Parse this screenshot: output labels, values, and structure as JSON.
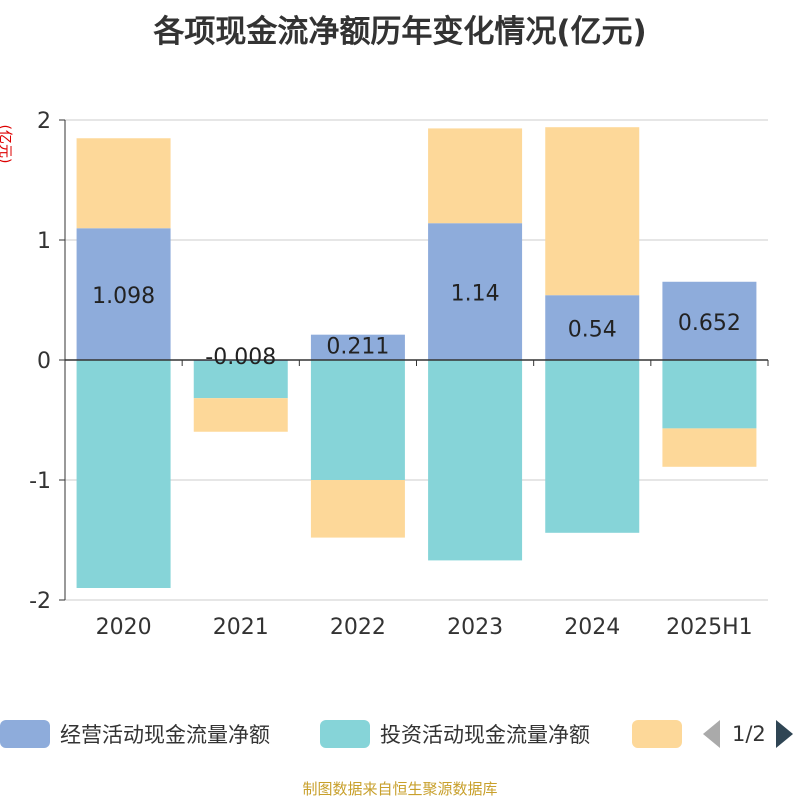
{
  "title": "各项现金流净额历年变化情况(亿元)",
  "y_unit": "(亿元)",
  "source": "制图数据来自恒生聚源数据库",
  "legend": {
    "pager_text": "1/2",
    "items": [
      {
        "label": "经营活动现金流量净额",
        "color": "#8eacdb"
      },
      {
        "label": "投资活动现金流量净额",
        "color": "#86d4d8"
      },
      {
        "label": "",
        "color": "#fdd899"
      }
    ]
  },
  "chart_data": {
    "type": "bar",
    "stacked": true,
    "title": "各项现金流净额历年变化情况(亿元)",
    "ylabel": "(亿元)",
    "ylim": [
      -2,
      2
    ],
    "yticks": [
      2,
      1,
      0,
      -1,
      -2
    ],
    "grid": true,
    "legend_position": "bottom",
    "categories": [
      "2020",
      "2021",
      "2022",
      "2023",
      "2024",
      "2025H1"
    ],
    "series": [
      {
        "name": "经营活动现金流量净额",
        "color": "#8eacdb",
        "values": [
          1.098,
          -0.008,
          0.211,
          1.14,
          0.54,
          0.652
        ],
        "labels": [
          "1.098",
          "-0.008",
          "0.211",
          "1.14",
          "0.54",
          "0.652"
        ]
      },
      {
        "color": "#86d4d8",
        "values": [
          -1.9,
          -0.31,
          -1.0,
          -1.67,
          -1.44,
          -0.57
        ]
      },
      {
        "color": "#fdd899",
        "values": [
          0.75,
          -0.28,
          -0.48,
          0.79,
          1.4,
          -0.32
        ]
      }
    ]
  }
}
